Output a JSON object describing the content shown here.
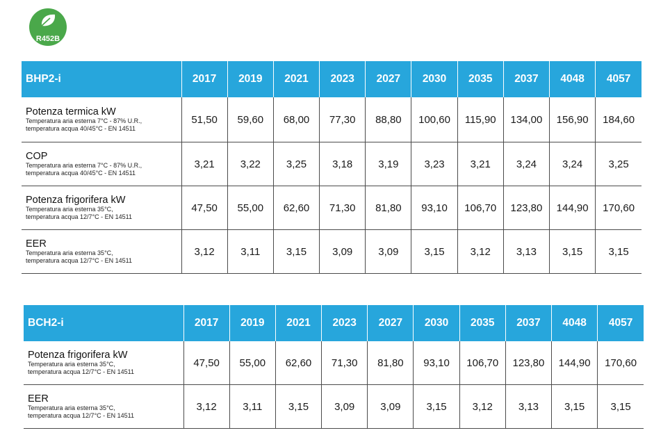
{
  "badge": {
    "label": "R452B",
    "color": "#4aa84a",
    "icon": "leaf-icon"
  },
  "colors": {
    "header_bg": "#27a6dc",
    "header_text": "#ffffff",
    "grid": "#4a4a4a"
  },
  "tables": [
    {
      "title": "BHP2-i",
      "models": [
        "2017",
        "2019",
        "2021",
        "2023",
        "2027",
        "2030",
        "2035",
        "2037",
        "4048",
        "4057"
      ],
      "rows": [
        {
          "title": "Potenza termica  kW",
          "sub1": "Temperatura aria esterna 7°C - 87% U.R.,",
          "sub2": "temperatura acqua 40/45°C - EN 14511",
          "values": [
            "51,50",
            "59,60",
            "68,00",
            "77,30",
            "88,80",
            "100,60",
            "115,90",
            "134,00",
            "156,90",
            "184,60"
          ]
        },
        {
          "title": "COP",
          "sub1": "Temperatura aria esterna 7°C - 87% U.R.,",
          "sub2": "temperatura acqua 40/45°C - EN 14511",
          "values": [
            "3,21",
            "3,22",
            "3,25",
            "3,18",
            "3,19",
            "3,23",
            "3,21",
            "3,24",
            "3,24",
            "3,25"
          ]
        },
        {
          "title": "Potenza frigorifera  kW",
          "sub1": "Temperatura aria esterna 35°C,",
          "sub2": "temperatura acqua 12/7°C - EN 14511",
          "values": [
            "47,50",
            "55,00",
            "62,60",
            "71,30",
            "81,80",
            "93,10",
            "106,70",
            "123,80",
            "144,90",
            "170,60"
          ]
        },
        {
          "title": "EER",
          "sub1": "Temperatura aria esterna 35°C,",
          "sub2": "temperatura acqua 12/7°C - EN 14511",
          "values": [
            "3,12",
            "3,11",
            "3,15",
            "3,09",
            "3,09",
            "3,15",
            "3,12",
            "3,13",
            "3,15",
            "3,15"
          ]
        }
      ]
    },
    {
      "title": "BCH2-i",
      "models": [
        "2017",
        "2019",
        "2021",
        "2023",
        "2027",
        "2030",
        "2035",
        "2037",
        "4048",
        "4057"
      ],
      "rows": [
        {
          "title": "Potenza frigorifera  kW",
          "sub1": "Temperatura aria esterna 35°C,",
          "sub2": "temperatura acqua 12/7°C - EN 14511",
          "values": [
            "47,50",
            "55,00",
            "62,60",
            "71,30",
            "81,80",
            "93,10",
            "106,70",
            "123,80",
            "144,90",
            "170,60"
          ]
        },
        {
          "title": "EER",
          "sub1": "Temperatura aria esterna 35°C,",
          "sub2": "temperatura acqua 12/7°C - EN 14511",
          "values": [
            "3,12",
            "3,11",
            "3,15",
            "3,09",
            "3,09",
            "3,15",
            "3,12",
            "3,13",
            "3,15",
            "3,15"
          ]
        }
      ]
    }
  ]
}
